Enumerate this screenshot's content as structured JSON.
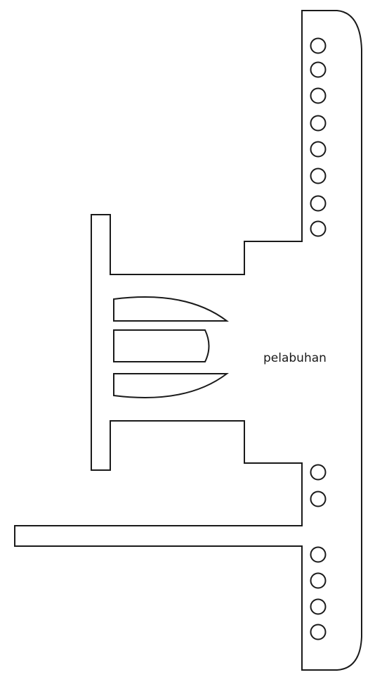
{
  "diagram": {
    "label": "pelabuhan",
    "line_color": "#1a1a1a",
    "background_color": "#ffffff",
    "bollard_groups": [
      {
        "name": "top",
        "count": 8
      },
      {
        "name": "middle",
        "count": 2
      },
      {
        "name": "bottom",
        "count": 4
      }
    ],
    "boats_in_dock": 3
  }
}
